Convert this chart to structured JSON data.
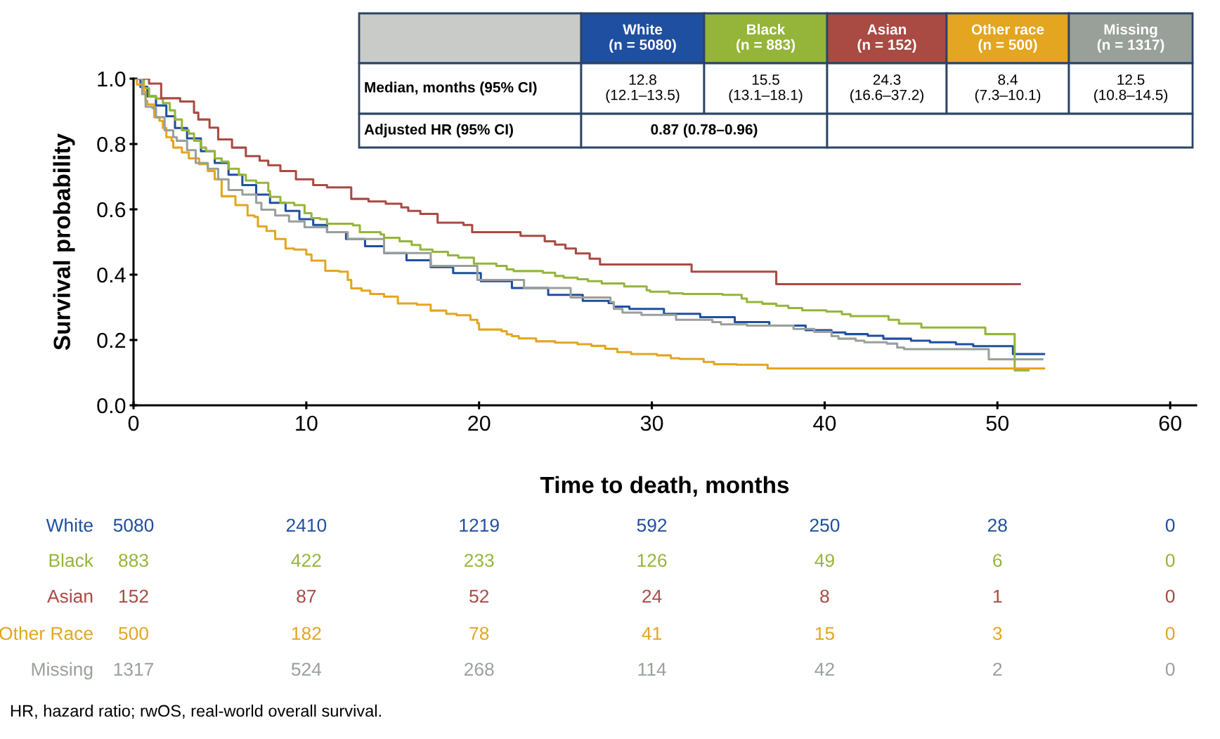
{
  "chart_data": {
    "type": "step",
    "xlabel": "Time to death, months",
    "ylabel": "Survival probability",
    "xlim": [
      0,
      61.5
    ],
    "ylim": [
      0,
      1.0
    ],
    "xticks": [
      0,
      10,
      20,
      30,
      40,
      50,
      60
    ],
    "yticks": [
      {
        "value": 0,
        "label": "0.0"
      },
      {
        "value": 0.2,
        "label": "0.2"
      },
      {
        "value": 0.4,
        "label": "0.4"
      },
      {
        "value": 0.6,
        "label": "0.6"
      },
      {
        "value": 0.8,
        "label": "0.8"
      },
      {
        "value": 1.0,
        "label": "1.0"
      }
    ],
    "grid": false,
    "legend": false,
    "series": [
      {
        "name": "White",
        "color": "#1f4fa0",
        "x": [
          0,
          0.4,
          0.8,
          1.3,
          1.9,
          2.4,
          3.1,
          3.9,
          4.7,
          5.5,
          6.3,
          7.1,
          7.9,
          8.8,
          9.6,
          10.4,
          11.2,
          12.3,
          13.4,
          14.5,
          15.8,
          17.2,
          18.5,
          20.1,
          21.9,
          24.0,
          26.0,
          27.5,
          27.8,
          28.7,
          30.7,
          32.8,
          34.8,
          36.8,
          38.9,
          40.4,
          41.2,
          42.5,
          43.4,
          45.0,
          46.1,
          47.6,
          48.6,
          50.9,
          52.7
        ],
        "values": [
          1.0,
          0.975,
          0.946,
          0.918,
          0.885,
          0.849,
          0.817,
          0.778,
          0.742,
          0.706,
          0.674,
          0.645,
          0.62,
          0.595,
          0.57,
          0.552,
          0.53,
          0.509,
          0.487,
          0.466,
          0.444,
          0.423,
          0.405,
          0.38,
          0.359,
          0.338,
          0.32,
          0.313,
          0.302,
          0.295,
          0.28,
          0.27,
          0.255,
          0.244,
          0.23,
          0.223,
          0.218,
          0.213,
          0.204,
          0.198,
          0.193,
          0.187,
          0.181,
          0.157,
          0.157
        ]
      },
      {
        "name": "Black",
        "color": "#95b53a",
        "x": [
          0,
          0.6,
          0.9,
          1.3,
          1.7,
          2.1,
          2.4,
          2.8,
          3.2,
          3.5,
          3.9,
          4.2,
          4.7,
          5.1,
          5.5,
          6.1,
          6.5,
          7.1,
          7.8,
          7.9,
          8.5,
          9.3,
          9.9,
          10.3,
          10.8,
          11.2,
          12.7,
          13.1,
          14.3,
          14.5,
          15.4,
          16.1,
          16.6,
          17.3,
          18.2,
          18.8,
          19.7,
          21.0,
          21.6,
          22.0,
          23.7,
          24.4,
          24.9,
          25.7,
          26.3,
          27.1,
          28.4,
          29.7,
          29.9,
          31.0,
          31.8,
          34.1,
          35.2,
          35.5,
          36.4,
          37.2,
          37.9,
          38.7,
          40.1,
          41.0,
          41.5,
          43.7,
          44.3,
          45.6,
          49.3,
          51.0,
          51.8
        ],
        "values": [
          1.0,
          0.971,
          0.946,
          0.939,
          0.925,
          0.903,
          0.875,
          0.842,
          0.832,
          0.81,
          0.789,
          0.778,
          0.756,
          0.746,
          0.724,
          0.706,
          0.688,
          0.681,
          0.656,
          0.638,
          0.62,
          0.613,
          0.588,
          0.573,
          0.57,
          0.556,
          0.551,
          0.53,
          0.523,
          0.513,
          0.502,
          0.491,
          0.477,
          0.47,
          0.459,
          0.452,
          0.434,
          0.427,
          0.416,
          0.411,
          0.406,
          0.396,
          0.391,
          0.386,
          0.38,
          0.373,
          0.364,
          0.352,
          0.348,
          0.343,
          0.341,
          0.338,
          0.327,
          0.316,
          0.311,
          0.305,
          0.298,
          0.291,
          0.287,
          0.279,
          0.273,
          0.262,
          0.25,
          0.238,
          0.218,
          0.107,
          0.107
        ]
      },
      {
        "name": "Asian",
        "color": "#a94a43",
        "x": [
          0,
          0.9,
          1.6,
          2.7,
          3.5,
          3.75,
          4.4,
          4.9,
          5.7,
          6.5,
          7.3,
          7.8,
          8.5,
          9.4,
          10.4,
          11.2,
          12.6,
          13.6,
          14.6,
          15.5,
          15.9,
          16.6,
          17.6,
          19.1,
          19.6,
          22.4,
          23.8,
          24.4,
          25.0,
          25.6,
          26.4,
          27.0,
          32.3,
          37.2,
          51.3
        ],
        "values": [
          1.0,
          0.985,
          0.94,
          0.93,
          0.896,
          0.875,
          0.85,
          0.814,
          0.789,
          0.763,
          0.749,
          0.735,
          0.717,
          0.692,
          0.674,
          0.667,
          0.632,
          0.624,
          0.617,
          0.606,
          0.595,
          0.586,
          0.559,
          0.552,
          0.53,
          0.519,
          0.502,
          0.492,
          0.48,
          0.465,
          0.449,
          0.431,
          0.409,
          0.371,
          0.371
        ]
      },
      {
        "name": "Other Race",
        "color": "#e4a520",
        "x": [
          0,
          0.2,
          0.6,
          0.7,
          0.8,
          1.2,
          1.5,
          1.7,
          1.9,
          2.2,
          2.3,
          2.8,
          3.2,
          3.8,
          4.3,
          4.7,
          5.1,
          5.9,
          6.6,
          7.0,
          7.2,
          7.7,
          8.2,
          8.8,
          9.3,
          10.0,
          10.3,
          11.1,
          11.9,
          12.4,
          12.6,
          13.2,
          13.7,
          14.5,
          15.3,
          16.4,
          17.2,
          18.1,
          18.7,
          19.5,
          19.9,
          20.0,
          21.3,
          21.6,
          21.9,
          22.3,
          23.3,
          24.4,
          25.7,
          26.5,
          27.3,
          28.0,
          28.8,
          30.3,
          31.1,
          31.6,
          33.0,
          33.6,
          34.9,
          36.7,
          52.7
        ],
        "values": [
          1.0,
          0.982,
          0.961,
          0.932,
          0.921,
          0.882,
          0.871,
          0.849,
          0.821,
          0.81,
          0.789,
          0.774,
          0.756,
          0.738,
          0.717,
          0.692,
          0.64,
          0.613,
          0.581,
          0.577,
          0.548,
          0.534,
          0.509,
          0.48,
          0.477,
          0.462,
          0.443,
          0.412,
          0.409,
          0.384,
          0.358,
          0.351,
          0.341,
          0.333,
          0.312,
          0.308,
          0.29,
          0.28,
          0.276,
          0.262,
          0.251,
          0.232,
          0.227,
          0.217,
          0.212,
          0.205,
          0.196,
          0.192,
          0.187,
          0.182,
          0.173,
          0.163,
          0.157,
          0.153,
          0.144,
          0.142,
          0.133,
          0.126,
          0.124,
          0.113,
          0.113
        ]
      },
      {
        "name": "Missing",
        "color": "#99a09a",
        "x": [
          0,
          0.5,
          0.7,
          1.1,
          1.3,
          1.8,
          2.3,
          2.5,
          3.1,
          3.6,
          4.3,
          4.9,
          5.5,
          6.3,
          7.1,
          7.4,
          8.2,
          9.0,
          9.9,
          11.2,
          12.4,
          14.5,
          17.2,
          19.9,
          22.6,
          25.3,
          27.6,
          27.8,
          28.3,
          29.4,
          31.4,
          33.5,
          34.0,
          35.5,
          38.2,
          39.4,
          40.4,
          40.8,
          41.8,
          42.3,
          43.6,
          44.2,
          44.6,
          49.5,
          52.6
        ],
        "values": [
          1.0,
          0.953,
          0.914,
          0.91,
          0.882,
          0.842,
          0.821,
          0.81,
          0.781,
          0.742,
          0.724,
          0.692,
          0.659,
          0.645,
          0.62,
          0.599,
          0.581,
          0.563,
          0.545,
          0.53,
          0.509,
          0.466,
          0.427,
          0.384,
          0.359,
          0.33,
          0.316,
          0.295,
          0.284,
          0.277,
          0.262,
          0.255,
          0.248,
          0.244,
          0.234,
          0.225,
          0.212,
          0.204,
          0.198,
          0.193,
          0.189,
          0.177,
          0.172,
          0.141,
          0.141
        ]
      }
    ],
    "annotations": [
      "White\n(n = 5080)",
      "Black\n(n = 883)",
      "Asian\n(n = 152)",
      "Other race\n(n = 500)",
      "Missing\n(n = 1317)",
      "Median, months (95% CI)",
      "12.8\n(12.1–13.5)",
      "15.5\n(13.1–18.1)",
      "24.3\n(16.6–37.2)",
      "8.4\n(7.3–10.1)",
      "12.5\n(10.8–14.5)",
      "Adjusted HR (95% CI)",
      "0.87 (0.78–0.96)",
      "5080",
      "2410",
      "1219",
      "592",
      "250",
      "28",
      "0",
      "883",
      "422",
      "233",
      "126",
      "49",
      "6",
      "0",
      "152",
      "87",
      "52",
      "24",
      "8",
      "1",
      "0",
      "500",
      "182",
      "78",
      "41",
      "15",
      "3",
      "0",
      "1317",
      "524",
      "268",
      "114",
      "42",
      "2",
      "0",
      "HR, hazard ratio; rwOS, real-world overall survival."
    ]
  }
}
